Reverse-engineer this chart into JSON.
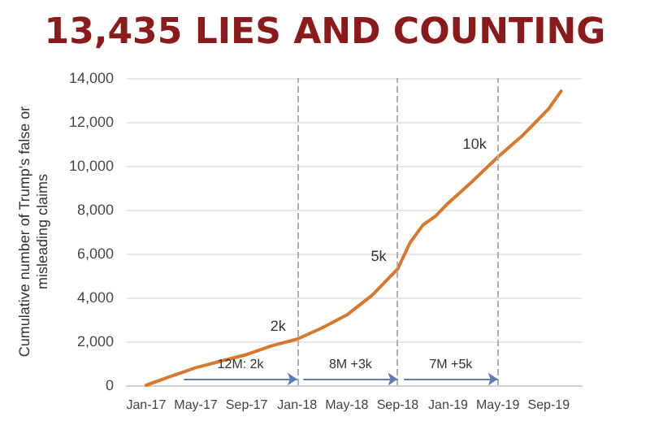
{
  "chart_data": {
    "type": "line",
    "title": "13,435 LIES AND COUNTING",
    "ylabel": "Cumulative number of Trump's false or\nmisleading claims",
    "x": [
      "2017-01",
      "2017-03",
      "2017-05",
      "2017-07",
      "2017-09",
      "2017-11",
      "2018-01",
      "2018-03",
      "2018-05",
      "2018-07",
      "2018-09",
      "2018-10",
      "2018-11",
      "2018-12",
      "2019-01",
      "2019-03",
      "2019-05",
      "2019-07",
      "2019-09",
      "2019-10"
    ],
    "series": [
      {
        "color": "#d9782d",
        "values": [
          0,
          400,
          800,
          1100,
          1400,
          1800,
          2100,
          2600,
          3200,
          4100,
          5300,
          6500,
          7300,
          7700,
          8300,
          9300,
          10400,
          11400,
          12600,
          13400
        ]
      }
    ],
    "xlim": [
      "2016-11-15",
      "2019-11-20"
    ],
    "xticks": [
      {
        "value": "2017-01",
        "label": "Jan-17"
      },
      {
        "value": "2017-05",
        "label": "May-17"
      },
      {
        "value": "2017-09",
        "label": "Sep-17"
      },
      {
        "value": "2018-01",
        "label": "Jan-18"
      },
      {
        "value": "2018-05",
        "label": "May-18"
      },
      {
        "value": "2018-09",
        "label": "Sep-18"
      },
      {
        "value": "2019-01",
        "label": "Jan-19"
      },
      {
        "value": "2019-05",
        "label": "May-19"
      },
      {
        "value": "2019-09",
        "label": "Sep-19"
      }
    ],
    "ylim": [
      0,
      14000
    ],
    "yticks": [
      0,
      {
        "value": 2000,
        "label": "2,000"
      },
      {
        "value": 4000,
        "label": "4,000"
      },
      {
        "value": 6000,
        "label": "6,000"
      },
      {
        "value": 8000,
        "label": "8,000"
      },
      {
        "value": 10000,
        "label": "10,000"
      },
      {
        "value": 12000,
        "label": "12,000"
      },
      {
        "value": 14000,
        "label": "14,000"
      }
    ],
    "grid": "y",
    "marker": "none",
    "line_style": "solid",
    "ref_lines": [
      {
        "axis": "x",
        "value": "2018-01",
        "color": "#b0b0b0",
        "line_style": "dashed"
      },
      {
        "axis": "x",
        "value": "2018-09",
        "color": "#b0b0b0",
        "line_style": "dashed"
      },
      {
        "axis": "x",
        "value": "2019-05",
        "color": "#b0b0b0",
        "line_style": "dashed"
      }
    ],
    "annotations": [
      {
        "text": "2k",
        "x": "2018-01",
        "y": 2100
      },
      {
        "text": "5k",
        "x": "2018-09",
        "y": 5300
      },
      {
        "text": "10k",
        "x": "2019-05",
        "y": 10400
      },
      "12M: 2k",
      "8M +3k",
      "7M +5k"
    ]
  }
}
